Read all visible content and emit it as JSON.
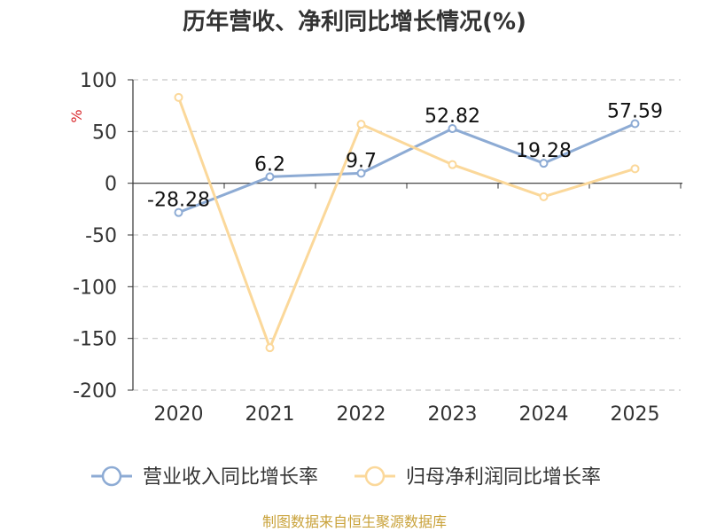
{
  "chart_data": {
    "type": "line",
    "title": "历年营收、净利同比增长情况(%)",
    "ylabel": "%",
    "categories": [
      "2020",
      "2021",
      "2022",
      "2023",
      "2024",
      "2025"
    ],
    "ylim": [
      -200,
      100
    ],
    "yticks": [
      "100",
      "50",
      "0",
      "-50",
      "-100",
      "-150",
      "-200"
    ],
    "grid": true,
    "legend_position": "bottom",
    "series": [
      {
        "name": "营业收入同比增长率",
        "color": "#8dabd4",
        "values": [
          -28.28,
          6.2,
          9.7,
          52.82,
          19.28,
          57.59
        ],
        "labels": [
          "-28.28",
          "6.2",
          "9.7",
          "52.82",
          "19.28",
          "57.59"
        ]
      },
      {
        "name": "归母净利润同比增长率",
        "color": "#fbd89a",
        "values": [
          83,
          -159,
          57,
          18,
          -13,
          14
        ]
      }
    ]
  },
  "source": "制图数据来自恒生聚源数据库"
}
